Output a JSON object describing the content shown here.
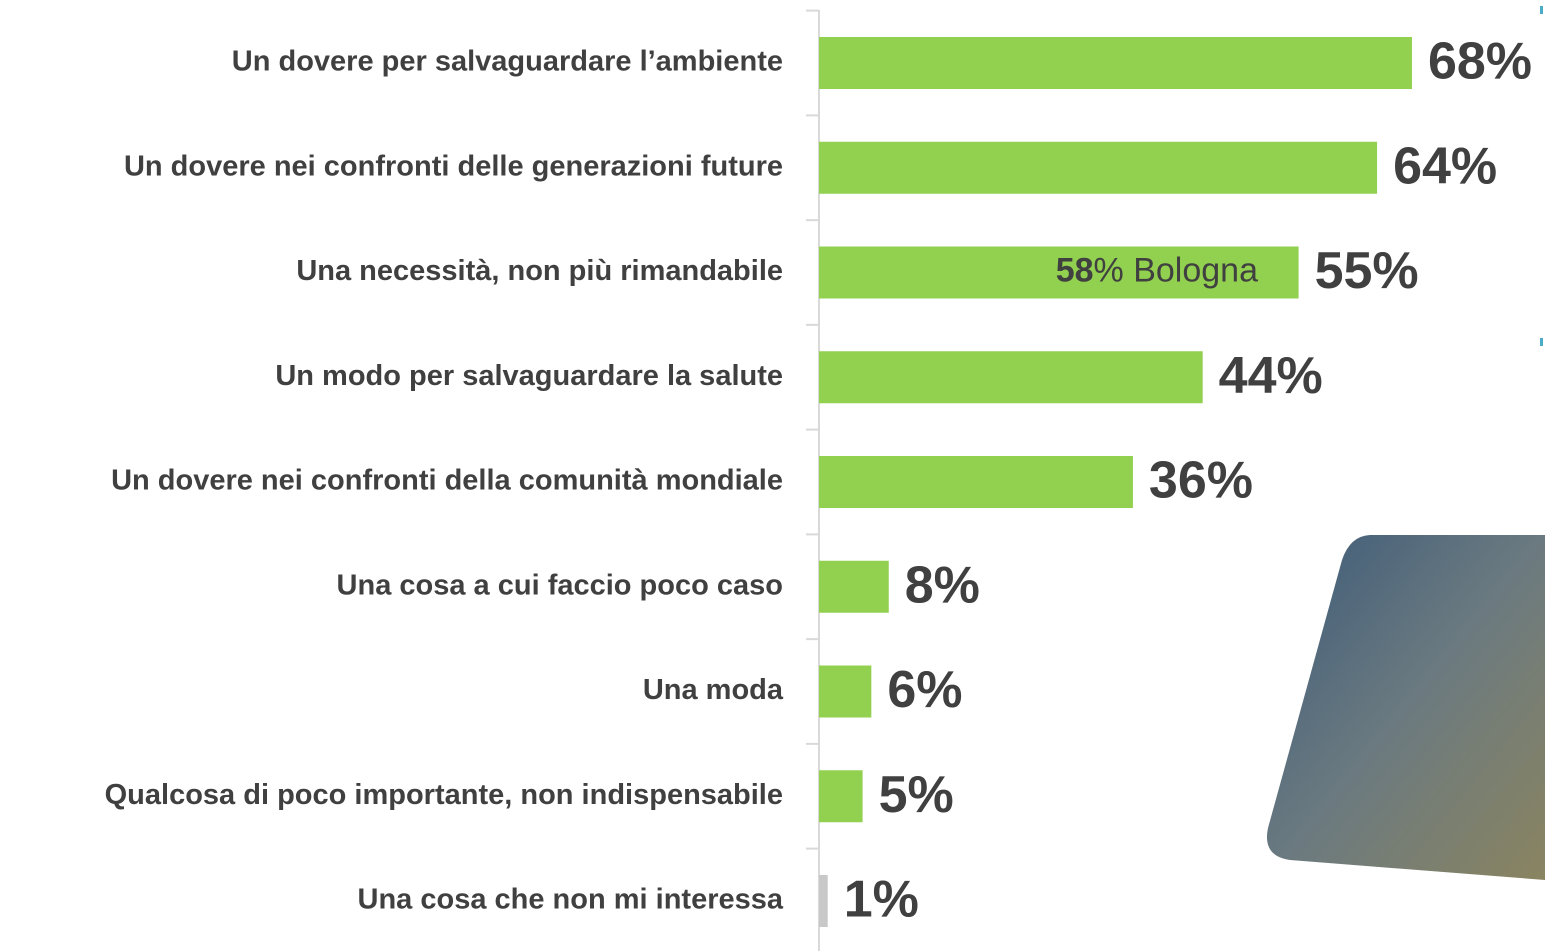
{
  "chart_data": {
    "type": "bar",
    "orientation": "horizontal",
    "categories": [
      "Un dovere per salvaguardare l’ambiente",
      "Un dovere nei confronti delle generazioni future",
      "Una necessità, non più rimandabile",
      "Un modo per salvaguardare la salute",
      "Un dovere nei confronti della comunità mondiale",
      "Una cosa a cui faccio poco caso",
      "Una moda",
      "Qualcosa di poco importante, non indispensabile",
      "Una cosa che non mi interessa"
    ],
    "values": [
      68,
      64,
      55,
      44,
      36,
      8,
      6,
      5,
      1
    ],
    "value_labels": [
      "68%",
      "64%",
      "55%",
      "44%",
      "36%",
      "8%",
      "6%",
      "5%",
      "1%"
    ],
    "colors": [
      "#92d050",
      "#92d050",
      "#92d050",
      "#92d050",
      "#92d050",
      "#92d050",
      "#92d050",
      "#92d050",
      "#c8c8c8"
    ],
    "annotation": "58% Bologna"
  }
}
